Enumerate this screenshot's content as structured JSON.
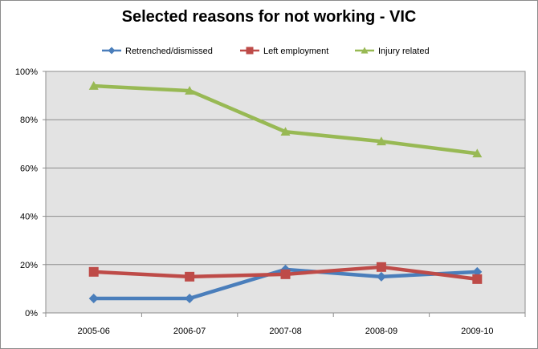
{
  "chart_data": {
    "type": "line",
    "title": "Selected reasons for not working - VIC",
    "categories": [
      "2005-06",
      "2006-07",
      "2007-08",
      "2008-09",
      "2009-10"
    ],
    "ylim": [
      0,
      100
    ],
    "yticks": [
      "0%",
      "20%",
      "40%",
      "60%",
      "80%",
      "100%"
    ],
    "grid": true,
    "legend_position": "top",
    "series": [
      {
        "name": "Retrenched/dismissed",
        "values": [
          6,
          6,
          18,
          15,
          17
        ],
        "color": "#4a7ebb",
        "marker": "diamond"
      },
      {
        "name": "Left employment",
        "values": [
          17,
          15,
          16,
          19,
          14
        ],
        "color": "#be4b48",
        "marker": "square"
      },
      {
        "name": "Injury related",
        "values": [
          94,
          92,
          75,
          71,
          66
        ],
        "color": "#98b954",
        "marker": "triangle"
      }
    ]
  }
}
